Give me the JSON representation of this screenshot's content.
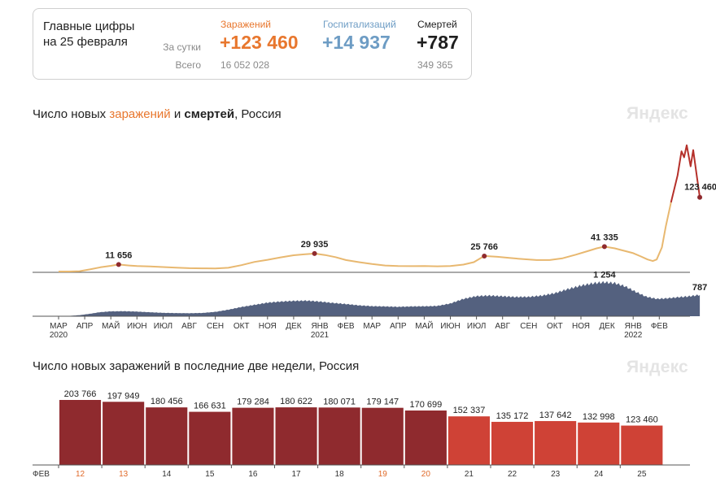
{
  "summary": {
    "title_line1": "Главные цифры",
    "title_line2": "на 25 февраля",
    "row_daily": "За сутки",
    "row_total": "Всего",
    "cases": {
      "label": "Заражений",
      "daily": "+123 460",
      "total": "16 052 028",
      "color": "#e8772e"
    },
    "hospital": {
      "label": "Госпитализаций",
      "daily": "+14 937",
      "total": "",
      "color": "#6d9cc4"
    },
    "deaths": {
      "label": "Смертей",
      "daily": "+787",
      "total": "349 365",
      "color": "#1e1e1e"
    }
  },
  "chart1": {
    "title_part1": "Число новых ",
    "title_cases": "заражений",
    "title_part2": " и ",
    "title_deaths": "смертей",
    "title_part3": ", Россия",
    "watermark": "Яндекс"
  },
  "chart2": {
    "title": "Число новых заражений в последние две недели, Россия",
    "watermark": "Яндекс"
  },
  "chart_data": [
    {
      "type": "line",
      "title": "Число новых заражений и смертей, Россия",
      "x_ticks": [
        "МАР",
        "АПР",
        "МАЙ",
        "ИЮН",
        "ИЮЛ",
        "АВГ",
        "СЕН",
        "ОКТ",
        "НОЯ",
        "ДЕК",
        "ЯНВ",
        "ФЕВ",
        "МАР",
        "АПР",
        "МАЙ",
        "ИЮН",
        "ИЮЛ",
        "АВГ",
        "СЕН",
        "ОКТ",
        "НОЯ",
        "ДЕК",
        "ЯНВ",
        "ФЕВ"
      ],
      "year_labels": [
        {
          "tick": 0,
          "label": "2020"
        },
        {
          "tick": 10,
          "label": "2021"
        },
        {
          "tick": 22,
          "label": "2022"
        }
      ],
      "cases": {
        "color": "#e8b870",
        "surge_color": "#b5302a",
        "points": [
          [
            0,
            0
          ],
          [
            0.4,
            50
          ],
          [
            0.8,
            600
          ],
          [
            1.2,
            3500
          ],
          [
            1.6,
            7000
          ],
          [
            2,
            9500
          ],
          [
            2.3,
            11656
          ],
          [
            2.7,
            10000
          ],
          [
            3,
            9000
          ],
          [
            3.5,
            8500
          ],
          [
            4,
            7500
          ],
          [
            4.5,
            6500
          ],
          [
            5,
            5600
          ],
          [
            5.5,
            5300
          ],
          [
            6,
            5200
          ],
          [
            6.5,
            6200
          ],
          [
            7,
            10500
          ],
          [
            7.5,
            16000
          ],
          [
            8,
            19500
          ],
          [
            8.5,
            23500
          ],
          [
            9,
            27000
          ],
          [
            9.4,
            28500
          ],
          [
            9.8,
            29935
          ],
          [
            10.2,
            27500
          ],
          [
            10.6,
            24000
          ],
          [
            11,
            19000
          ],
          [
            11.5,
            15500
          ],
          [
            12,
            12500
          ],
          [
            12.5,
            10000
          ],
          [
            13,
            9200
          ],
          [
            13.5,
            8900
          ],
          [
            14,
            9000
          ],
          [
            14.5,
            8700
          ],
          [
            15,
            9000
          ],
          [
            15.5,
            11500
          ],
          [
            15.9,
            15500
          ],
          [
            16.3,
            25766
          ],
          [
            16.8,
            24500
          ],
          [
            17.3,
            22500
          ],
          [
            17.8,
            20500
          ],
          [
            18.3,
            19000
          ],
          [
            18.8,
            19000
          ],
          [
            19.3,
            22000
          ],
          [
            19.8,
            28000
          ],
          [
            20.3,
            34500
          ],
          [
            20.6,
            38500
          ],
          [
            20.9,
            41335
          ],
          [
            21.3,
            38500
          ],
          [
            21.7,
            34000
          ],
          [
            22,
            30500
          ],
          [
            22.3,
            25000
          ],
          [
            22.55,
            20000
          ],
          [
            22.75,
            17500
          ],
          [
            22.9,
            20000
          ],
          [
            23.1,
            40000
          ],
          [
            23.25,
            75000
          ],
          [
            23.45,
            115000
          ],
          [
            23.7,
            160000
          ],
          [
            23.85,
            200000
          ],
          [
            23.95,
            190000
          ],
          [
            24.05,
            210000
          ],
          [
            24.2,
            175000
          ],
          [
            24.3,
            202000
          ],
          [
            24.45,
            155000
          ],
          [
            24.55,
            123460
          ]
        ],
        "labels": [
          {
            "x": 2.3,
            "y": 11656,
            "text": "11 656"
          },
          {
            "x": 9.8,
            "y": 29935,
            "text": "29 935"
          },
          {
            "x": 16.3,
            "y": 25766,
            "text": "25 766"
          },
          {
            "x": 20.9,
            "y": 41335,
            "text": "41 335"
          },
          {
            "x": 24.55,
            "y": 123460,
            "text": "123 460"
          }
        ]
      },
      "deaths": {
        "color": "#4b5878",
        "points": [
          [
            0,
            0
          ],
          [
            0.4,
            10
          ],
          [
            0.8,
            40
          ],
          [
            1.2,
            90
          ],
          [
            1.6,
            150
          ],
          [
            2,
            180
          ],
          [
            2.5,
            185
          ],
          [
            3,
            170
          ],
          [
            3.5,
            145
          ],
          [
            4,
            125
          ],
          [
            4.5,
            115
          ],
          [
            5,
            110
          ],
          [
            5.5,
            120
          ],
          [
            6,
            160
          ],
          [
            6.5,
            240
          ],
          [
            7,
            340
          ],
          [
            7.5,
            420
          ],
          [
            8,
            500
          ],
          [
            8.5,
            540
          ],
          [
            9,
            565
          ],
          [
            9.5,
            575
          ],
          [
            10,
            540
          ],
          [
            10.5,
            490
          ],
          [
            11,
            450
          ],
          [
            11.5,
            400
          ],
          [
            12,
            370
          ],
          [
            12.5,
            360
          ],
          [
            13,
            345
          ],
          [
            13.5,
            360
          ],
          [
            14,
            365
          ],
          [
            14.5,
            380
          ],
          [
            15,
            470
          ],
          [
            15.5,
            640
          ],
          [
            16,
            740
          ],
          [
            16.5,
            760
          ],
          [
            17,
            735
          ],
          [
            17.5,
            710
          ],
          [
            18,
            715
          ],
          [
            18.5,
            760
          ],
          [
            19,
            850
          ],
          [
            19.5,
            1000
          ],
          [
            20,
            1130
          ],
          [
            20.5,
            1220
          ],
          [
            20.9,
            1254
          ],
          [
            21.3,
            1220
          ],
          [
            21.7,
            1100
          ],
          [
            22.1,
            900
          ],
          [
            22.5,
            720
          ],
          [
            22.9,
            640
          ],
          [
            23.3,
            660
          ],
          [
            23.7,
            700
          ],
          [
            24.1,
            730
          ],
          [
            24.55,
            787
          ]
        ],
        "labels": [
          {
            "x": 20.9,
            "y": 1254,
            "text": "1 254"
          },
          {
            "x": 24.55,
            "y": 787,
            "text": "787"
          }
        ]
      }
    },
    {
      "type": "bar",
      "title": "Число новых заражений в последние две недели, Россия",
      "month_label": "ФЕВ",
      "categories": [
        "12",
        "13",
        "14",
        "15",
        "16",
        "17",
        "18",
        "19",
        "20",
        "21",
        "22",
        "23",
        "24",
        "25"
      ],
      "values": [
        203766,
        197949,
        180456,
        166631,
        179284,
        180622,
        180071,
        179147,
        170699,
        152337,
        135172,
        137642,
        132998,
        123460
      ],
      "value_labels": [
        "203 766",
        "197 949",
        "180 456",
        "166 631",
        "179 284",
        "180 622",
        "180 071",
        "179 147",
        "170 699",
        "152 337",
        "135 172",
        "137 642",
        "132 998",
        "123 460"
      ],
      "weekend": [
        true,
        true,
        false,
        false,
        false,
        false,
        false,
        true,
        true,
        false,
        false,
        false,
        false,
        false
      ],
      "dark_color": "#8f2a2e",
      "light_color": "#cf4236",
      "weekend_label_color": "#e06a2a",
      "weekday_label_color": "#333333",
      "ylim": [
        0,
        210000
      ]
    }
  ]
}
